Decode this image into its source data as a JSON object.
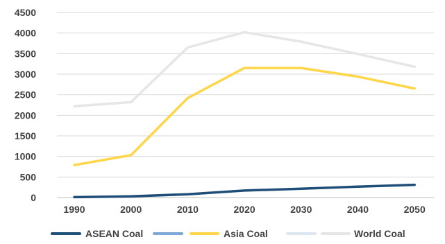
{
  "chart_data": {
    "type": "line",
    "x": [
      1990,
      2000,
      2010,
      2020,
      2030,
      2040,
      2050
    ],
    "x_tick_labels": [
      "1990",
      "2000",
      "2010",
      "2020",
      "2030",
      "2040",
      "2050"
    ],
    "ylim": [
      0,
      4500
    ],
    "y_ticks": [
      0,
      500,
      1000,
      1500,
      2000,
      2500,
      3000,
      3500,
      4000,
      4500
    ],
    "y_tick_labels": [
      "0",
      "500",
      "1000",
      "1500",
      "2000",
      "2500",
      "3000",
      "3500",
      "4000",
      "4500"
    ],
    "grid": "horizontal",
    "legend_position": "bottom",
    "series": [
      {
        "name": "ASEAN Coal",
        "color": "#1f4e79",
        "values": [
          10,
          30,
          80,
          170,
          215,
          265,
          310
        ]
      },
      {
        "name": "Asia Coal",
        "color": "#ffd54a",
        "values": [
          790,
          1030,
          2420,
          3150,
          3150,
          2940,
          2650
        ]
      },
      {
        "name": "World Coal",
        "color": "#e6e6e6",
        "values": [
          2220,
          2320,
          3650,
          4020,
          3790,
          3490,
          3180
        ]
      }
    ],
    "legend": [
      {
        "label": "ASEAN Coal",
        "color": "#1f4e79"
      },
      {
        "label": "",
        "color": "#7fa7d6"
      },
      {
        "label": "Asia Coal",
        "color": "#ffd54a"
      },
      {
        "label": "",
        "color": "#dde7f1"
      },
      {
        "label": "World Coal",
        "color": "#e6e6e6"
      }
    ]
  }
}
